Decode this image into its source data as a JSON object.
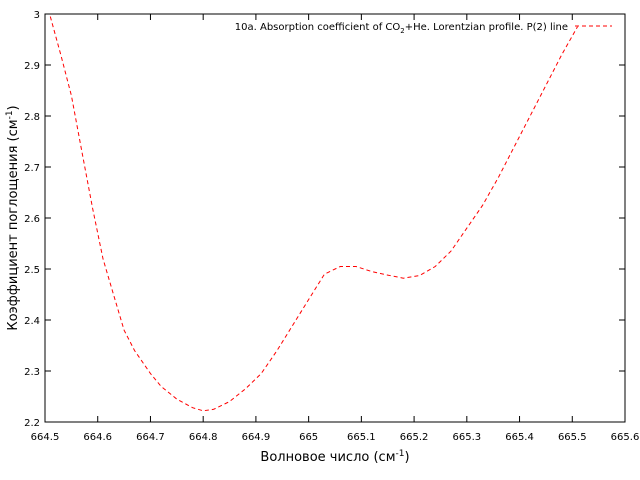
{
  "chart_data": {
    "type": "line",
    "xlabel": "Волновое число (см",
    "xlabel_sup": "-1",
    "xlabel_close": ")",
    "ylabel": "Коэффициент поглощения (см",
    "ylabel_sup": "-1",
    "ylabel_close": ")",
    "xlim": [
      664.5,
      665.6
    ],
    "ylim": [
      2.2,
      3.0
    ],
    "x_ticks": [
      {
        "value": 664.5,
        "label": "664.5"
      },
      {
        "value": 664.6,
        "label": "664.6"
      },
      {
        "value": 664.7,
        "label": "664.7"
      },
      {
        "value": 664.8,
        "label": "664.8"
      },
      {
        "value": 664.9,
        "label": "664.9"
      },
      {
        "value": 665.0,
        "label": "665"
      },
      {
        "value": 665.1,
        "label": "665.1"
      },
      {
        "value": 665.2,
        "label": "665.2"
      },
      {
        "value": 665.3,
        "label": "665.3"
      },
      {
        "value": 665.4,
        "label": "665.4"
      },
      {
        "value": 665.5,
        "label": "665.5"
      },
      {
        "value": 665.6,
        "label": "665.6"
      }
    ],
    "y_ticks": [
      {
        "value": 2.2,
        "label": "2.2"
      },
      {
        "value": 2.3,
        "label": "2.3"
      },
      {
        "value": 2.4,
        "label": "2.4"
      },
      {
        "value": 2.5,
        "label": "2.5"
      },
      {
        "value": 2.6,
        "label": "2.6"
      },
      {
        "value": 2.7,
        "label": "2.7"
      },
      {
        "value": 2.8,
        "label": "2.8"
      },
      {
        "value": 2.9,
        "label": "2.9"
      },
      {
        "value": 3.0,
        "label": "3"
      }
    ],
    "legend_position": "top-right",
    "series": [
      {
        "name": "10a. Absorption coefficient of CO2+He. Lorentzian profile. P(2) line",
        "legend_parts": [
          "10a. Absorption coefficient of CO",
          "2",
          "+He. Lorentzian profile. P(2) line"
        ],
        "color": "#ff0000",
        "style": "dashed",
        "x": [
          664.51,
          664.53,
          664.55,
          664.57,
          664.59,
          664.61,
          664.63,
          664.65,
          664.67,
          664.7,
          664.72,
          664.75,
          664.78,
          664.8,
          664.82,
          664.85,
          664.88,
          664.91,
          664.94,
          664.97,
          665.0,
          665.03,
          665.06,
          665.09,
          665.12,
          665.15,
          665.18,
          665.21,
          665.24,
          665.27,
          665.3,
          665.33,
          665.36,
          665.39,
          665.42,
          665.45,
          665.48,
          665.51
        ],
        "y": [
          2.995,
          2.92,
          2.84,
          2.73,
          2.62,
          2.52,
          2.45,
          2.38,
          2.34,
          2.295,
          2.27,
          2.245,
          2.228,
          2.222,
          2.225,
          2.24,
          2.265,
          2.295,
          2.34,
          2.39,
          2.44,
          2.49,
          2.505,
          2.505,
          2.495,
          2.488,
          2.482,
          2.487,
          2.505,
          2.535,
          2.58,
          2.625,
          2.68,
          2.74,
          2.8,
          2.86,
          2.92,
          2.975
        ]
      }
    ]
  }
}
